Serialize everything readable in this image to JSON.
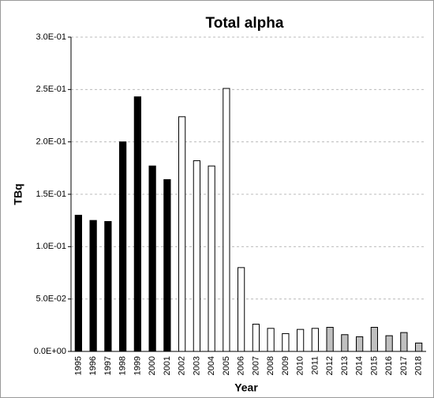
{
  "chart_data": {
    "type": "bar",
    "title": "Total alpha",
    "x_label": "Year",
    "y_label": "TBq",
    "categories": [
      "1995",
      "1996",
      "1997",
      "1998",
      "1999",
      "2000",
      "2001",
      "2002",
      "2003",
      "2004",
      "2005",
      "2006",
      "2007",
      "2008",
      "2009",
      "2010",
      "2011",
      "2012",
      "2013",
      "2014",
      "2015",
      "2016",
      "2017",
      "2018"
    ],
    "values": [
      0.13,
      0.125,
      0.124,
      0.2,
      0.243,
      0.177,
      0.164,
      0.224,
      0.182,
      0.177,
      0.251,
      0.08,
      0.026,
      0.022,
      0.017,
      0.021,
      0.022,
      0.023,
      0.016,
      0.014,
      0.023,
      0.015,
      0.018,
      0.008
    ],
    "colors": [
      "#000000",
      "#000000",
      "#000000",
      "#000000",
      "#000000",
      "#000000",
      "#000000",
      "#ffffff",
      "#ffffff",
      "#ffffff",
      "#ffffff",
      "#ffffff",
      "#ffffff",
      "#ffffff",
      "#ffffff",
      "#ffffff",
      "#ffffff",
      "#c0c0c0",
      "#c0c0c0",
      "#c0c0c0",
      "#c0c0c0",
      "#c0c0c0",
      "#c0c0c0",
      "#c0c0c0"
    ],
    "ylim": [
      0,
      0.3
    ],
    "yticks": [
      {
        "value": 0,
        "label": "0.0E+00"
      },
      {
        "value": 0.05,
        "label": "5.0E-02"
      },
      {
        "value": 0.1,
        "label": "1.0E-01"
      },
      {
        "value": 0.15,
        "label": "1.5E-01"
      },
      {
        "value": 0.2,
        "label": "2.0E-01"
      },
      {
        "value": 0.25,
        "label": "2.5E-01"
      },
      {
        "value": 0.3,
        "label": "3.0E-01"
      }
    ],
    "grid": true
  }
}
